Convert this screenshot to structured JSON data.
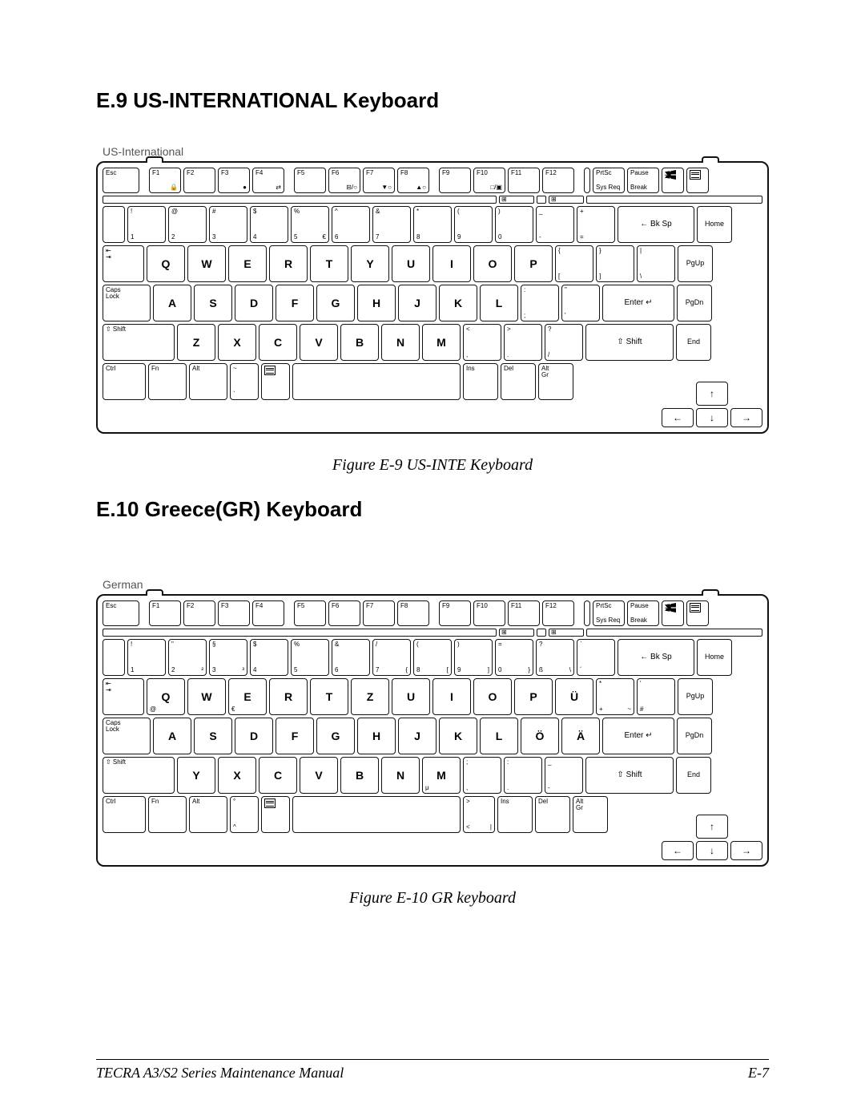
{
  "section1": {
    "heading": "E.9   US-INTERNATIONAL Keyboard",
    "kb_label": "US-International",
    "caption": "Figure E-9  US-INTE Keyboard",
    "row_fn": [
      "Esc",
      "F1",
      "F2",
      "F3",
      "F4",
      "F5",
      "F6",
      "F7",
      "F8",
      "F9",
      "F10",
      "F11",
      "F12",
      "",
      "PrtSc\nSys Req",
      "Pause\nBreak",
      "",
      ""
    ],
    "row_fn_sub": [
      "",
      "🔒",
      "",
      "●",
      "⇄",
      "",
      "⊟/○",
      "▼○",
      "▲○",
      "",
      "□/▣",
      "",
      "",
      "",
      "",
      "",
      "",
      ""
    ],
    "row1": [
      {
        "t": "!",
        "b": "1"
      },
      {
        "t": "@",
        "b": "2"
      },
      {
        "t": "#",
        "b": "3"
      },
      {
        "t": "$",
        "b": "4"
      },
      {
        "t": "%",
        "b": "5",
        "br": "€"
      },
      {
        "t": "^",
        "b": "6"
      },
      {
        "t": "&",
        "b": "7"
      },
      {
        "t": "*",
        "b": "8"
      },
      {
        "t": "(",
        "b": "9"
      },
      {
        "t": ")",
        "b": "0"
      },
      {
        "t": "_",
        "b": "-"
      },
      {
        "t": "+",
        "b": "="
      }
    ],
    "row1_bksp": "← Bk Sp",
    "row1_home": "Home",
    "row2_tab": "⇤\n⇥",
    "row2": [
      "Q",
      "W",
      "E",
      "R",
      "T",
      "Y",
      "U",
      "I",
      "O",
      "P"
    ],
    "row2_br": [
      {
        "t": "{",
        "b": "["
      },
      {
        "t": "}",
        "b": "]"
      },
      {
        "t": "|",
        "b": "\\"
      }
    ],
    "row2_pgup": "PgUp",
    "row3_caps": "Caps\nLock",
    "row3": [
      "A",
      "S",
      "D",
      "F",
      "G",
      "H",
      "J",
      "K",
      "L"
    ],
    "row3_br": [
      {
        "t": ":",
        "b": ";"
      },
      {
        "t": "\"",
        "b": "'"
      }
    ],
    "row3_enter": "Enter ↵",
    "row3_pgdn": "PgDn",
    "row4_lshift": "⇧ Shift",
    "row4": [
      "Z",
      "X",
      "C",
      "V",
      "B",
      "N",
      "M"
    ],
    "row4_br": [
      {
        "t": "<",
        "b": ","
      },
      {
        "t": ">",
        "b": "."
      },
      {
        "t": "?",
        "b": "/"
      }
    ],
    "row4_rshift": "⇧ Shift",
    "row4_end": "End",
    "row5": [
      "Ctrl",
      "Fn",
      "Alt"
    ],
    "row5_tilde": {
      "t": "~",
      "b": "`"
    },
    "row5_space": "",
    "row5_right": [
      "Ins",
      "Del",
      "Alt\nGr"
    ],
    "arrows": [
      "↑",
      "←",
      "↓",
      "→"
    ]
  },
  "section2": {
    "heading": "E.10  Greece(GR) Keyboard",
    "kb_label": "German",
    "caption": "Figure E-10  GR keyboard",
    "row_fn": [
      "Esc",
      "F1",
      "F2",
      "F3",
      "F4",
      "F5",
      "F6",
      "F7",
      "F8",
      "F9",
      "F10",
      "F11",
      "F12",
      "",
      "PrtSc\nSys Req",
      "Pause\nBreak",
      "",
      ""
    ],
    "row1": [
      {
        "t": "!",
        "b": "1"
      },
      {
        "t": "\"",
        "b": "2",
        "br": "²"
      },
      {
        "t": "§",
        "b": "3",
        "br": "³"
      },
      {
        "t": "$",
        "b": "4"
      },
      {
        "t": "%",
        "b": "5"
      },
      {
        "t": "&",
        "b": "6"
      },
      {
        "t": "/",
        "b": "7",
        "br": "{"
      },
      {
        "t": "(",
        "b": "8",
        "br": "["
      },
      {
        "t": ")",
        "b": "9",
        "br": "]"
      },
      {
        "t": "=",
        "b": "0",
        "br": "}"
      },
      {
        "t": "?",
        "b": "ß",
        "br": "\\"
      },
      {
        "t": "`",
        "b": "´"
      }
    ],
    "row1_bksp": "← Bk Sp",
    "row1_home": "Home",
    "row2_tab": "⇤\n⇥",
    "row2": [
      "Q",
      "W",
      "E",
      "R",
      "T",
      "Z",
      "U",
      "I",
      "O",
      "P",
      "Ü"
    ],
    "row2_q_sub": "@",
    "row2_e_sub": "€",
    "row2_br": [
      {
        "t": "*",
        "b": "+",
        "br": "~"
      },
      {
        "t": "'",
        "b": "#"
      }
    ],
    "row2_pgup": "PgUp",
    "row3_caps": "Caps\nLock",
    "row3": [
      "A",
      "S",
      "D",
      "F",
      "G",
      "H",
      "J",
      "K",
      "L",
      "Ö",
      "Ä"
    ],
    "row3_enter": "Enter ↵",
    "row3_pgdn": "PgDn",
    "row4_lshift": "⇧ Shift",
    "row4": [
      "Y",
      "X",
      "C",
      "V",
      "B",
      "N",
      "M"
    ],
    "row4_m_sub": "μ",
    "row4_br": [
      {
        "t": ";",
        "b": ","
      },
      {
        "t": ":",
        "b": "."
      },
      {
        "t": "_",
        "b": "-"
      }
    ],
    "row4_rshift": "⇧ Shift",
    "row4_end": "End",
    "row5": [
      "Ctrl",
      "Fn",
      "Alt"
    ],
    "row5_tilde": {
      "t": "°",
      "b": "^"
    },
    "row5_right_extra": {
      "t": ">",
      "b": "<",
      "br": "|"
    },
    "row5_right": [
      "Ins",
      "Del",
      "Alt\nGr"
    ],
    "arrows": [
      "↑",
      "←",
      "↓",
      "→"
    ]
  },
  "footer": {
    "left": "TECRA A3/S2 Series Maintenance Manual",
    "right": "E-7"
  },
  "colors": {
    "text": "#000000",
    "bg": "#ffffff",
    "border": "#111111"
  }
}
